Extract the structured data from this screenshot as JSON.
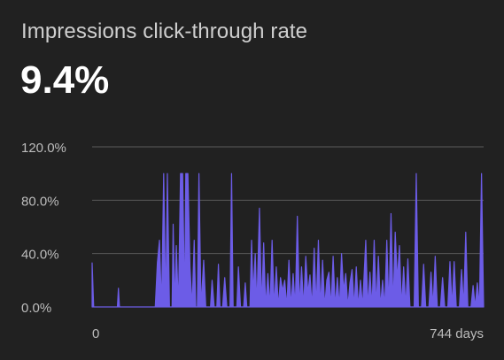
{
  "metric": {
    "title": "Impressions click-through rate",
    "value": "9.4%"
  },
  "colors": {
    "background": "#212121",
    "series": "#6c5ce7",
    "gridline": "#5a5a5a",
    "tick_text": "#bdbdbd"
  },
  "chart_data": {
    "type": "area",
    "title": "Impressions click-through rate",
    "xlabel": "",
    "ylabel": "",
    "ylim": [
      0,
      120
    ],
    "yticks": [
      0,
      40,
      80,
      120
    ],
    "ytick_labels": [
      "0.0%",
      "40.0%",
      "80.0%",
      "120.0%"
    ],
    "xlim": [
      0,
      744
    ],
    "xtick_labels": [
      "0",
      "744 days"
    ],
    "grid": true,
    "legend": "none",
    "series": [
      {
        "name": "",
        "points": [
          [
            0,
            33
          ],
          [
            3,
            0
          ],
          [
            10,
            0
          ],
          [
            48,
            0
          ],
          [
            50,
            14
          ],
          [
            52,
            0
          ],
          [
            120,
            0
          ],
          [
            124,
            33
          ],
          [
            128,
            50
          ],
          [
            132,
            0
          ],
          [
            136,
            100
          ],
          [
            140,
            0
          ],
          [
            143,
            100
          ],
          [
            147,
            0
          ],
          [
            152,
            0
          ],
          [
            154,
            62
          ],
          [
            157,
            0
          ],
          [
            160,
            46
          ],
          [
            164,
            0
          ],
          [
            168,
            100
          ],
          [
            172,
            100
          ],
          [
            176,
            0
          ],
          [
            178,
            100
          ],
          [
            182,
            100
          ],
          [
            186,
            30
          ],
          [
            190,
            0
          ],
          [
            194,
            50
          ],
          [
            197,
            0
          ],
          [
            200,
            0
          ],
          [
            203,
            100
          ],
          [
            207,
            0
          ],
          [
            212,
            35
          ],
          [
            216,
            0
          ],
          [
            225,
            0
          ],
          [
            228,
            20
          ],
          [
            232,
            0
          ],
          [
            237,
            0
          ],
          [
            240,
            32
          ],
          [
            243,
            0
          ],
          [
            248,
            0
          ],
          [
            252,
            22
          ],
          [
            256,
            0
          ],
          [
            262,
            0
          ],
          [
            265,
            100
          ],
          [
            268,
            0
          ],
          [
            275,
            0
          ],
          [
            278,
            30
          ],
          [
            282,
            0
          ],
          [
            288,
            0
          ],
          [
            291,
            18
          ],
          [
            294,
            0
          ],
          [
            300,
            0
          ],
          [
            303,
            50
          ],
          [
            306,
            10
          ],
          [
            310,
            40
          ],
          [
            313,
            0
          ],
          [
            318,
            74
          ],
          [
            322,
            0
          ],
          [
            326,
            48
          ],
          [
            330,
            0
          ],
          [
            334,
            25
          ],
          [
            338,
            0
          ],
          [
            342,
            50
          ],
          [
            346,
            0
          ],
          [
            350,
            30
          ],
          [
            354,
            0
          ],
          [
            358,
            22
          ],
          [
            362,
            12
          ],
          [
            366,
            20
          ],
          [
            370,
            0
          ],
          [
            374,
            35
          ],
          [
            378,
            0
          ],
          [
            382,
            25
          ],
          [
            386,
            0
          ],
          [
            390,
            68
          ],
          [
            394,
            0
          ],
          [
            398,
            30
          ],
          [
            402,
            0
          ],
          [
            406,
            38
          ],
          [
            410,
            10
          ],
          [
            414,
            24
          ],
          [
            418,
            0
          ],
          [
            422,
            44
          ],
          [
            426,
            0
          ],
          [
            430,
            50
          ],
          [
            434,
            0
          ],
          [
            438,
            35
          ],
          [
            442,
            0
          ],
          [
            446,
            20
          ],
          [
            450,
            26
          ],
          [
            454,
            0
          ],
          [
            458,
            38
          ],
          [
            462,
            0
          ],
          [
            466,
            22
          ],
          [
            470,
            0
          ],
          [
            474,
            40
          ],
          [
            478,
            12
          ],
          [
            482,
            25
          ],
          [
            486,
            0
          ],
          [
            490,
            18
          ],
          [
            494,
            28
          ],
          [
            498,
            0
          ],
          [
            502,
            30
          ],
          [
            506,
            0
          ],
          [
            510,
            20
          ],
          [
            514,
            0
          ],
          [
            520,
            50
          ],
          [
            524,
            0
          ],
          [
            528,
            26
          ],
          [
            532,
            0
          ],
          [
            536,
            50
          ],
          [
            540,
            0
          ],
          [
            544,
            38
          ],
          [
            548,
            0
          ],
          [
            552,
            20
          ],
          [
            556,
            0
          ],
          [
            560,
            50
          ],
          [
            564,
            0
          ],
          [
            568,
            70
          ],
          [
            572,
            0
          ],
          [
            576,
            56
          ],
          [
            580,
            20
          ],
          [
            584,
            46
          ],
          [
            588,
            0
          ],
          [
            592,
            30
          ],
          [
            596,
            0
          ],
          [
            600,
            36
          ],
          [
            604,
            0
          ],
          [
            612,
            0
          ],
          [
            616,
            100
          ],
          [
            620,
            0
          ],
          [
            626,
            0
          ],
          [
            630,
            32
          ],
          [
            634,
            0
          ],
          [
            640,
            0
          ],
          [
            644,
            26
          ],
          [
            648,
            0
          ],
          [
            652,
            38
          ],
          [
            656,
            0
          ],
          [
            662,
            0
          ],
          [
            666,
            22
          ],
          [
            670,
            0
          ],
          [
            676,
            0
          ],
          [
            680,
            34
          ],
          [
            684,
            0
          ],
          [
            688,
            34
          ],
          [
            692,
            0
          ],
          [
            698,
            0
          ],
          [
            702,
            28
          ],
          [
            706,
            0
          ],
          [
            710,
            56
          ],
          [
            714,
            0
          ],
          [
            720,
            0
          ],
          [
            724,
            16
          ],
          [
            728,
            0
          ],
          [
            732,
            18
          ],
          [
            736,
            0
          ],
          [
            740,
            100
          ],
          [
            744,
            0
          ]
        ]
      }
    ]
  }
}
